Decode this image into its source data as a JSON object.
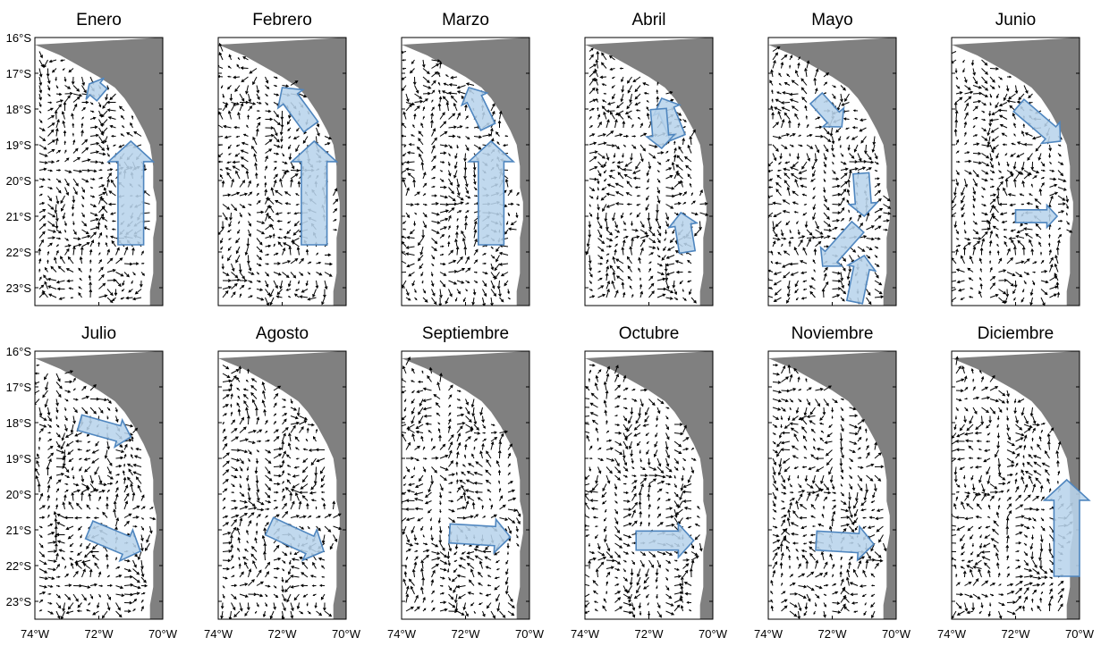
{
  "figure": {
    "panels": [
      {
        "month": "Enero",
        "arrows": [
          {
            "from": [
              -71.9,
              17.6
            ],
            "to": [
              -72.3,
              17.3
            ],
            "width": 0.5
          },
          {
            "from": [
              -71.0,
              21.8
            ],
            "to": [
              -71.0,
              18.9
            ],
            "width": 0.8
          }
        ]
      },
      {
        "month": "Febrero",
        "arrows": [
          {
            "from": [
              -71.1,
              18.5
            ],
            "to": [
              -72.0,
              17.4
            ],
            "width": 0.55
          },
          {
            "from": [
              -71.0,
              21.8
            ],
            "to": [
              -71.0,
              18.9
            ],
            "width": 0.8
          }
        ]
      },
      {
        "month": "Marzo",
        "arrows": [
          {
            "from": [
              -71.3,
              18.5
            ],
            "to": [
              -71.9,
              17.4
            ],
            "width": 0.5
          },
          {
            "from": [
              -71.2,
              21.8
            ],
            "to": [
              -71.2,
              18.9
            ],
            "width": 0.8
          }
        ]
      },
      {
        "month": "Abril",
        "arrows": [
          {
            "from": [
              -71.1,
              18.8
            ],
            "to": [
              -71.6,
              17.7
            ],
            "width": 0.5
          },
          {
            "from": [
              -71.7,
              18.0
            ],
            "to": [
              -71.6,
              19.1
            ],
            "width": 0.5
          },
          {
            "from": [
              -70.8,
              22.0
            ],
            "to": [
              -71.0,
              20.9
            ],
            "width": 0.5
          }
        ]
      },
      {
        "month": "Mayo",
        "arrows": [
          {
            "from": [
              -72.5,
              17.7
            ],
            "to": [
              -71.7,
              18.5
            ],
            "width": 0.5
          },
          {
            "from": [
              -71.1,
              19.8
            ],
            "to": [
              -71.0,
              21.0
            ],
            "width": 0.5
          },
          {
            "from": [
              -71.2,
              21.3
            ],
            "to": [
              -72.3,
              22.4
            ],
            "width": 0.5
          },
          {
            "from": [
              -71.3,
              23.4
            ],
            "to": [
              -71.0,
              22.1
            ],
            "width": 0.5
          }
        ]
      },
      {
        "month": "Junio",
        "arrows": [
          {
            "from": [
              -71.9,
              17.9
            ],
            "to": [
              -70.6,
              18.9
            ],
            "width": 0.5
          },
          {
            "from": [
              -72.0,
              21.0
            ],
            "to": [
              -70.7,
              21.0
            ],
            "width": 0.4
          }
        ]
      },
      {
        "month": "Julio",
        "arrows": [
          {
            "from": [
              -72.6,
              18.0
            ],
            "to": [
              -71.0,
              18.4
            ],
            "width": 0.5
          },
          {
            "from": [
              -72.3,
              21.0
            ],
            "to": [
              -70.7,
              21.6
            ],
            "width": 0.6
          }
        ]
      },
      {
        "month": "Agosto",
        "arrows": [
          {
            "from": [
              -72.4,
              20.9
            ],
            "to": [
              -70.7,
              21.6
            ],
            "width": 0.6
          }
        ]
      },
      {
        "month": "Septiembre",
        "arrows": [
          {
            "from": [
              -72.5,
              21.1
            ],
            "to": [
              -70.6,
              21.2
            ],
            "width": 0.6
          }
        ]
      },
      {
        "month": "Octubre",
        "arrows": [
          {
            "from": [
              -72.4,
              21.3
            ],
            "to": [
              -70.6,
              21.3
            ],
            "width": 0.6
          }
        ]
      },
      {
        "month": "Noviembre",
        "arrows": [
          {
            "from": [
              -72.5,
              21.3
            ],
            "to": [
              -70.7,
              21.4
            ],
            "width": 0.6
          }
        ]
      },
      {
        "month": "Diciembre",
        "arrows": [
          {
            "from": [
              -70.4,
              22.3
            ],
            "to": [
              -70.4,
              19.6
            ],
            "width": 0.8
          }
        ]
      }
    ],
    "lat_ticks": [
      "16°S",
      "17°S",
      "18°S",
      "19°S",
      "20°S",
      "21°S",
      "22°S",
      "23°S"
    ],
    "lat_values": [
      16,
      17,
      18,
      19,
      20,
      21,
      22,
      23
    ],
    "lon_ticks": [
      "74°W",
      "72°W",
      "70°W"
    ],
    "lon_values": [
      -74,
      -72,
      -70
    ],
    "extent": {
      "lon_min": -74,
      "lon_max": -70,
      "lat_min": 16,
      "lat_max": 23.5
    },
    "coast": [
      [
        -74.0,
        16.2
      ],
      [
        -73.2,
        16.5
      ],
      [
        -72.6,
        16.8
      ],
      [
        -72.0,
        17.1
      ],
      [
        -71.5,
        17.4
      ],
      [
        -71.2,
        17.7
      ],
      [
        -70.9,
        18.1
      ],
      [
        -70.6,
        18.6
      ],
      [
        -70.4,
        19.0
      ],
      [
        -70.3,
        19.6
      ],
      [
        -70.3,
        20.2
      ],
      [
        -70.2,
        20.6
      ],
      [
        -70.2,
        21.1
      ],
      [
        -70.3,
        21.6
      ],
      [
        -70.3,
        22.1
      ],
      [
        -70.3,
        22.6
      ],
      [
        -70.4,
        23.1
      ],
      [
        -70.4,
        23.5
      ]
    ],
    "colors": {
      "land": "#808080",
      "flow_fill": "#b8d4ec",
      "flow_stroke": "#4f86bf",
      "vectors": "#000000"
    }
  }
}
